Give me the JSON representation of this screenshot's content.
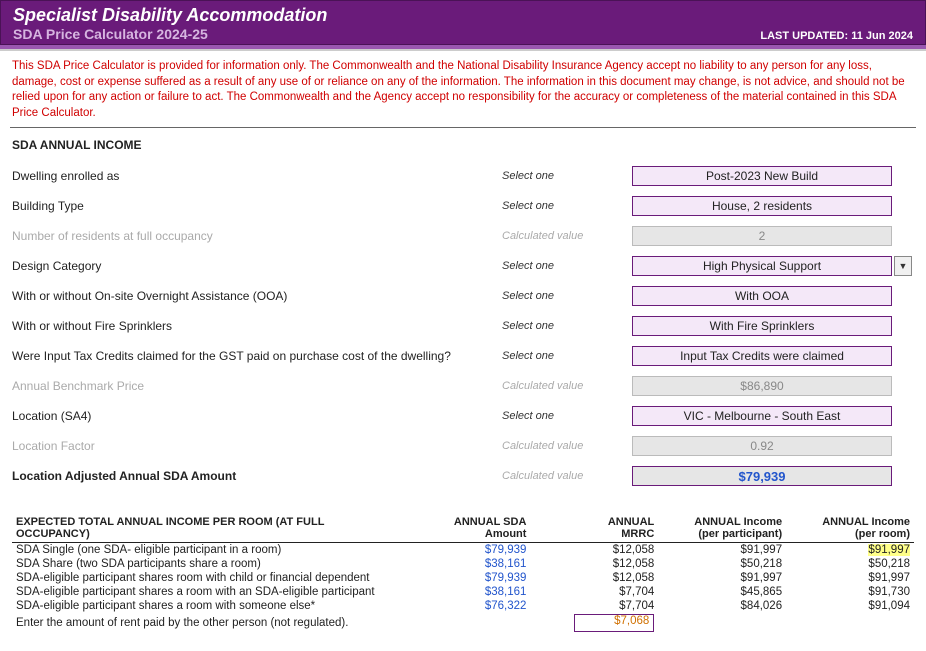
{
  "header": {
    "title": "Specialist Disability Accommodation",
    "subtitle": "SDA Price Calculator 2024-25",
    "lastUpdatedLabel": "LAST UPDATED:",
    "lastUpdatedDate": "11 Jun 2024"
  },
  "disclaimer": "This SDA Price Calculator is provided for information only.  The Commonwealth and the National Disability Insurance Agency accept no liability to any person for any loss, damage, cost or expense suffered as a result of any use of or reliance on any of the information.  The information in this document may change, is not advice, and should not be relied upon for any action or failure to act. The Commonwealth and the Agency accept no responsibility for the accuracy or completeness of the material contained in this SDA Price Calculator.",
  "actions": {
    "select": "Select one",
    "calc": "Calculated value"
  },
  "annualIncome": {
    "title": "SDA ANNUAL INCOME",
    "rows": {
      "enrolled": {
        "label": "Dwelling enrolled as",
        "value": "Post-2023 New Build"
      },
      "buildingType": {
        "label": "Building Type",
        "value": "House, 2 residents"
      },
      "residents": {
        "label": "Number of residents at full occupancy",
        "value": "2"
      },
      "design": {
        "label": "Design Category",
        "value": "High Physical Support"
      },
      "ooa": {
        "label": "With or without On-site Overnight Assistance (OOA)",
        "value": "With OOA"
      },
      "fire": {
        "label": "With or without Fire Sprinklers",
        "value": "With Fire Sprinklers"
      },
      "tax": {
        "label": "Were Input Tax Credits claimed for the GST paid on purchase cost of the dwelling?",
        "value": "Input Tax Credits were claimed"
      },
      "benchmark": {
        "label": "Annual Benchmark Price",
        "value": "$86,890"
      },
      "location": {
        "label": "Location (SA4)",
        "value": "VIC - Melbourne - South East"
      },
      "factor": {
        "label": "Location Factor",
        "value": "0.92"
      },
      "adjusted": {
        "label": "Location Adjusted Annual SDA Amount",
        "value": "$79,939"
      }
    }
  },
  "table": {
    "title": "EXPECTED TOTAL ANNUAL INCOME PER ROOM (AT FULL OCCUPANCY)",
    "headers": {
      "sda1": "ANNUAL SDA",
      "sda2": "Amount",
      "mrrc1": "ANNUAL",
      "mrrc2": "MRRC",
      "pp1": "ANNUAL Income",
      "pp2": "(per participant)",
      "pr1": "ANNUAL Income",
      "pr2": "(per room)"
    },
    "rows": [
      {
        "desc": "SDA Single (one SDA- eligible participant in a room)",
        "sda": "$79,939",
        "mrrc": "$12,058",
        "pp": "$91,997",
        "pr": "$91,997",
        "hl": true
      },
      {
        "desc": "SDA Share (two SDA participants share a room)",
        "sda": "$38,161",
        "mrrc": "$12,058",
        "pp": "$50,218",
        "pr": "$50,218"
      },
      {
        "desc": "SDA-eligible participant shares room with child or financial dependent",
        "sda": "$79,939",
        "mrrc": "$12,058",
        "pp": "$91,997",
        "pr": "$91,997"
      },
      {
        "desc": "SDA-eligible participant shares a room with an SDA-eligible participant",
        "sda": "$38,161",
        "mrrc": "$7,704",
        "pp": "$45,865",
        "pr": "$91,730"
      },
      {
        "desc": "SDA-eligible participant shares a room with someone else*",
        "sda": "$76,322",
        "mrrc": "$7,704",
        "pp": "$84,026",
        "pr": "$91,094"
      }
    ],
    "rentNote": "Enter the amount of rent paid by the other person (not regulated).",
    "rentValue": "$7,068"
  }
}
